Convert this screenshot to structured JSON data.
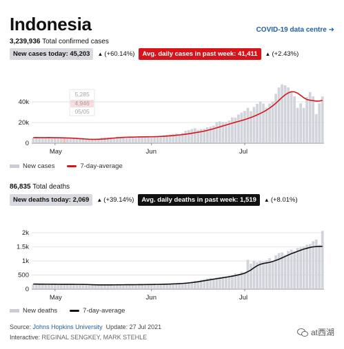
{
  "header": {
    "title": "Indonesia",
    "link_text": "COVID-19 data centre ➜"
  },
  "cases": {
    "total_value": "3,239,936",
    "total_label": "Total confirmed cases",
    "today_label": "New cases today: 45,203",
    "today_change": "(+60.14%)",
    "avg_label": "Avg. daily cases in past week: 41,411",
    "avg_change": "(+2.43%)",
    "tooltip": {
      "value_a": "5,285",
      "value_b": "4,946",
      "date": "05/05"
    },
    "legend": {
      "bars": "New cases",
      "line": "7-day-average"
    }
  },
  "deaths": {
    "total_value": "86,835",
    "total_label": "Total deaths",
    "today_label": "New deaths today: 2,069",
    "today_change": "(+39.14%)",
    "avg_label": "Avg. daily deaths in past week: 1,519",
    "avg_change": "(+8.01%)",
    "legend": {
      "bars": "New deaths",
      "line": "7-day-average"
    }
  },
  "footer": {
    "source_prefix": "Source:",
    "source_name": "Johns Hopkins University",
    "update": "Update: 27 Jul 2021",
    "interactive_prefix": "Interactive:",
    "interactive_names": "REGINAL SENGKEY, MARK STEHLE"
  },
  "watermark": "at西湖",
  "colors": {
    "bar": "#c9ccd4",
    "cases_line": "#d8141b",
    "deaths_line": "#111111",
    "link": "#1f5fa8",
    "tooltip_bar": "#e8b0b2"
  },
  "icons": {
    "up_arrow": "up-arrow-icon",
    "right_arrow": "arrow-right-icon"
  },
  "chart_data": [
    {
      "type": "bar",
      "title": "New cases",
      "x_start": "2021-04-24",
      "x_end": "2021-07-26",
      "x_ticks": [
        "May",
        "Jun",
        "Jul"
      ],
      "y_ticks": [
        "0",
        "20k",
        "40k"
      ],
      "ylim": [
        0,
        60000
      ],
      "highlight_date": "05/05",
      "series": [
        {
          "name": "New cases",
          "kind": "bar",
          "values": [
            5400,
            5800,
            5500,
            5300,
            5600,
            5900,
            4800,
            5200,
            5300,
            5100,
            5285,
            5000,
            4800,
            4600,
            4200,
            4100,
            3800,
            3500,
            3300,
            3600,
            4000,
            4500,
            5500,
            5800,
            5600,
            5500,
            5200,
            6200,
            5900,
            5800,
            5600,
            6200,
            6300,
            6400,
            6100,
            6600,
            6300,
            6200,
            6200,
            6200,
            6000,
            6800,
            7700,
            8000,
            8500,
            9000,
            9300,
            8800,
            9900,
            12000,
            12700,
            13700,
            14500,
            12800,
            13700,
            14000,
            15300,
            16000,
            17000,
            20500,
            21100,
            20600,
            20500,
            21800,
            25000,
            24700,
            27800,
            29700,
            31200,
            34300,
            31000,
            35100,
            38100,
            40400,
            38400,
            34400,
            38300,
            40400,
            47800,
            53900,
            57000,
            56000,
            54000,
            50200,
            45400,
            34200,
            38700,
            34300,
            44700,
            49500,
            45400,
            28200,
            38600,
            45203
          ]
        },
        {
          "name": "7-day-average",
          "kind": "line",
          "values": [
            5400,
            5450,
            5400,
            5350,
            5400,
            5450,
            5350,
            5300,
            5280,
            5200,
            5150,
            5050,
            4946,
            4800,
            4600,
            4400,
            4200,
            4000,
            3800,
            3700,
            3700,
            3800,
            3950,
            4150,
            4400,
            4700,
            5000,
            5200,
            5400,
            5600,
            5750,
            5850,
            5900,
            6000,
            6050,
            6100,
            6150,
            6200,
            6250,
            6300,
            6400,
            6550,
            6700,
            6900,
            7150,
            7400,
            7700,
            8000,
            8300,
            8700,
            9100,
            9600,
            10100,
            10600,
            11100,
            11700,
            12400,
            13200,
            14000,
            14900,
            15800,
            16700,
            17600,
            18500,
            19400,
            20300,
            21100,
            21900,
            22800,
            23800,
            24900,
            26100,
            27400,
            28800,
            30300,
            32000,
            34000,
            36200,
            38700,
            41500,
            44300,
            46800,
            48700,
            49800,
            49700,
            48400,
            46300,
            44000,
            42300,
            41600,
            41200,
            40800,
            40900,
            41411
          ]
        }
      ]
    },
    {
      "type": "bar",
      "title": "New deaths",
      "x_start": "2021-04-24",
      "x_end": "2021-07-26",
      "x_ticks": [
        "May",
        "Jun",
        "Jul"
      ],
      "y_ticks": [
        "0",
        "500",
        "1k",
        "1.5k",
        "2k"
      ],
      "ylim": [
        0,
        2200
      ],
      "series": [
        {
          "name": "New deaths",
          "kind": "bar",
          "values": [
            180,
            160,
            170,
            175,
            165,
            180,
            170,
            175,
            160,
            165,
            170,
            175,
            160,
            165,
            175,
            180,
            170,
            165,
            160,
            150,
            140,
            150,
            160,
            150,
            145,
            155,
            150,
            160,
            150,
            165,
            170,
            155,
            150,
            160,
            165,
            170,
            160,
            165,
            170,
            175,
            180,
            170,
            175,
            185,
            180,
            190,
            200,
            210,
            220,
            230,
            250,
            270,
            300,
            290,
            330,
            350,
            380,
            400,
            380,
            420,
            430,
            440,
            460,
            480,
            500,
            560,
            540,
            620,
            600,
            1040,
            900,
            1000,
            960,
            1000,
            980,
            1020,
            1100,
            1000,
            1200,
            1280,
            1300,
            1220,
            1350,
            1400,
            1350,
            1460,
            1480,
            1510,
            1580,
            1600,
            1700,
            1760,
            1580,
            2069
          ]
        },
        {
          "name": "7-day-average",
          "kind": "line",
          "values": [
            180,
            178,
            176,
            175,
            174,
            174,
            173,
            172,
            171,
            170,
            170,
            170,
            169,
            169,
            168,
            168,
            167,
            165,
            162,
            158,
            154,
            152,
            151,
            150,
            151,
            152,
            153,
            154,
            155,
            156,
            157,
            157,
            158,
            159,
            160,
            161,
            162,
            163,
            164,
            166,
            168,
            170,
            173,
            176,
            180,
            184,
            189,
            195,
            202,
            210,
            220,
            232,
            246,
            262,
            279,
            297,
            316,
            335,
            352,
            370,
            387,
            405,
            422,
            440,
            460,
            482,
            506,
            533,
            565,
            620,
            680,
            760,
            830,
            880,
            910,
            930,
            950,
            980,
            1020,
            1060,
            1110,
            1160,
            1210,
            1260,
            1300,
            1340,
            1380,
            1420,
            1450,
            1480,
            1500,
            1510,
            1515,
            1519
          ]
        }
      ]
    }
  ]
}
